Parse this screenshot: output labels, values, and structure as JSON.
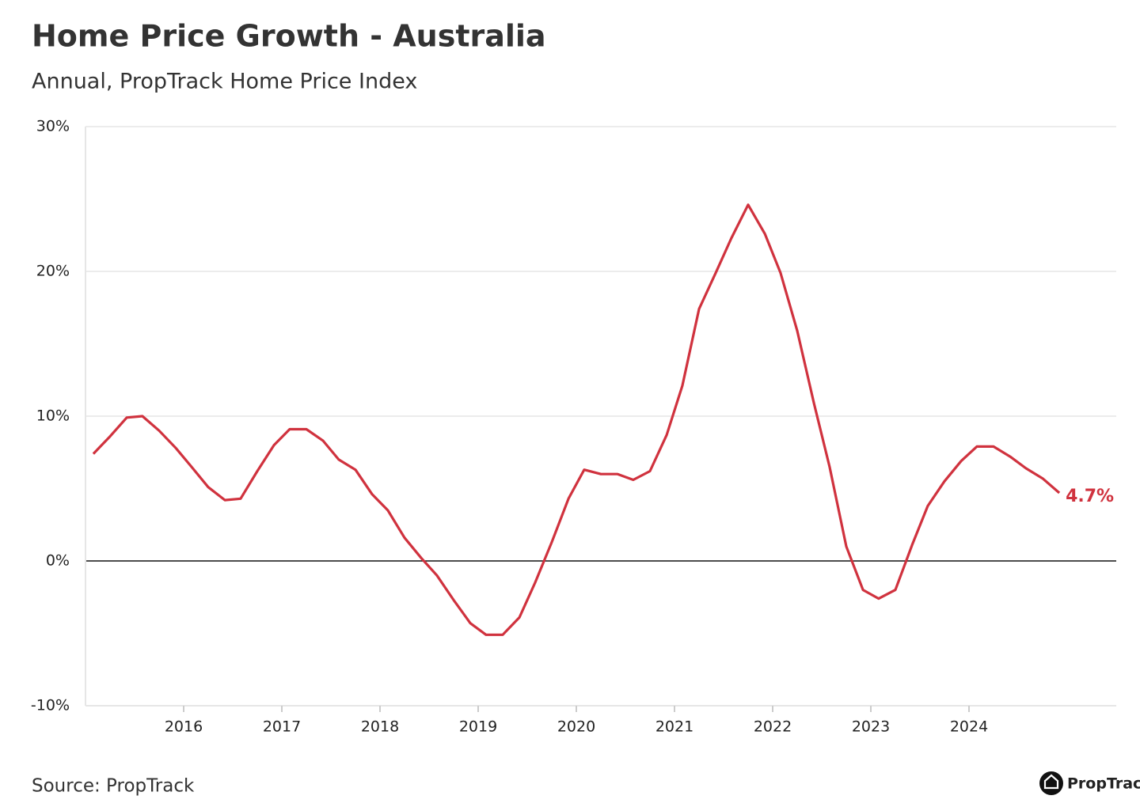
{
  "chart_data": {
    "type": "line",
    "title": "Home Price Growth - Australia",
    "subtitle": "Annual, PropTrack Home Price Index",
    "source": "Source: PropTrack",
    "brand": "PropTrack",
    "end_label": "4.7%",
    "xlim": [
      2015.0,
      2025.5
    ],
    "xticks": [
      2016,
      2017,
      2018,
      2019,
      2020,
      2021,
      2022,
      2023,
      2024
    ],
    "ylim": [
      -10,
      30
    ],
    "yticks": [
      {
        "value": -10,
        "label": "-10%"
      },
      {
        "value": 0,
        "label": "0%"
      },
      {
        "value": 10,
        "label": "10%"
      },
      {
        "value": 20,
        "label": "20%"
      },
      {
        "value": 30,
        "label": "30%"
      }
    ],
    "grid": true,
    "zero_line_color": "#111111",
    "x": [
      2015.08,
      2015.25,
      2015.42,
      2015.58,
      2015.75,
      2015.92,
      2016.08,
      2016.25,
      2016.42,
      2016.58,
      2016.75,
      2016.92,
      2017.08,
      2017.25,
      2017.42,
      2017.58,
      2017.75,
      2017.92,
      2018.08,
      2018.25,
      2018.42,
      2018.58,
      2018.75,
      2018.92,
      2019.08,
      2019.25,
      2019.42,
      2019.58,
      2019.75,
      2019.92,
      2020.08,
      2020.25,
      2020.42,
      2020.58,
      2020.75,
      2020.92,
      2021.08,
      2021.25,
      2021.42,
      2021.58,
      2021.75,
      2021.92,
      2022.08,
      2022.25,
      2022.42,
      2022.58,
      2022.75,
      2022.92,
      2023.08,
      2023.25,
      2023.42,
      2023.58,
      2023.75,
      2023.92,
      2024.08,
      2024.25,
      2024.42,
      2024.58,
      2024.75,
      2024.92
    ],
    "series": [
      {
        "name": "Australia",
        "color": "#d0323e",
        "values": [
          7.4,
          8.6,
          9.9,
          10.0,
          9.0,
          7.8,
          6.5,
          5.1,
          4.2,
          4.3,
          6.2,
          8.0,
          9.1,
          9.1,
          8.3,
          7.0,
          6.3,
          4.6,
          3.5,
          1.6,
          0.2,
          -1.0,
          -2.7,
          -4.3,
          -5.1,
          -5.1,
          -3.9,
          -1.5,
          1.3,
          4.3,
          6.3,
          6.0,
          6.0,
          5.6,
          6.2,
          8.7,
          12.1,
          17.4,
          19.9,
          22.3,
          24.6,
          22.6,
          19.9,
          15.9,
          10.9,
          6.5,
          1.0,
          -2.0,
          -2.6,
          -2.0,
          1.1,
          3.8,
          5.5,
          6.9,
          7.9,
          7.9,
          7.2,
          6.4,
          5.7,
          4.7
        ]
      }
    ]
  }
}
